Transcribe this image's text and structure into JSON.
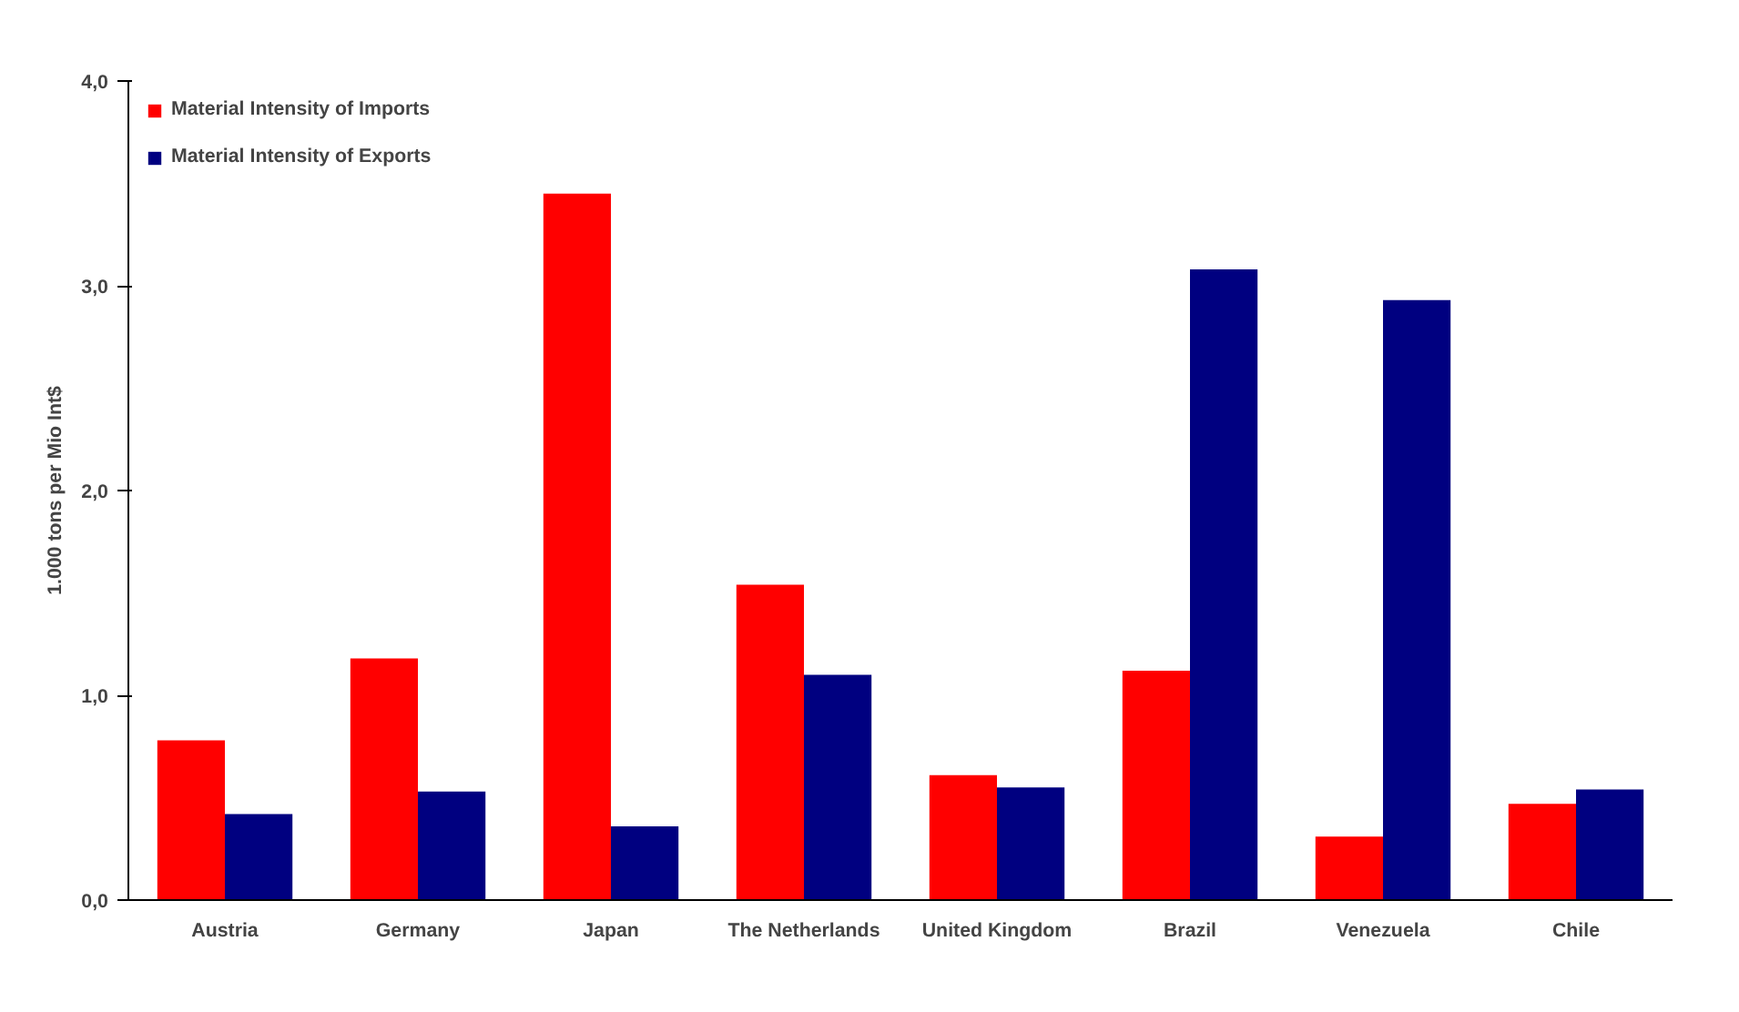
{
  "chart_data": {
    "type": "bar",
    "ylabel": "1.000 tons per Mio Int$",
    "categories": [
      "Austria",
      "Germany",
      "Japan",
      "The Netherlands",
      "United Kingdom",
      "Brazil",
      "Venezuela",
      "Chile"
    ],
    "series": [
      {
        "name": "Material Intensity of Imports",
        "color": "#ff0000",
        "values": [
          0.78,
          1.18,
          3.45,
          1.54,
          0.61,
          1.12,
          0.31,
          0.47
        ]
      },
      {
        "name": "Material Intensity of Exports",
        "color": "#000080",
        "values": [
          0.42,
          0.53,
          0.36,
          1.1,
          0.55,
          3.08,
          2.93,
          0.54
        ]
      }
    ],
    "ylim": [
      0,
      4
    ],
    "yticks": [
      {
        "value": 0,
        "label": "0,0"
      },
      {
        "value": 1,
        "label": "1,0"
      },
      {
        "value": 2,
        "label": "2,0"
      },
      {
        "value": 3,
        "label": "3,0"
      },
      {
        "value": 4,
        "label": "4,0"
      }
    ],
    "grid": false,
    "legend": "top left"
  }
}
